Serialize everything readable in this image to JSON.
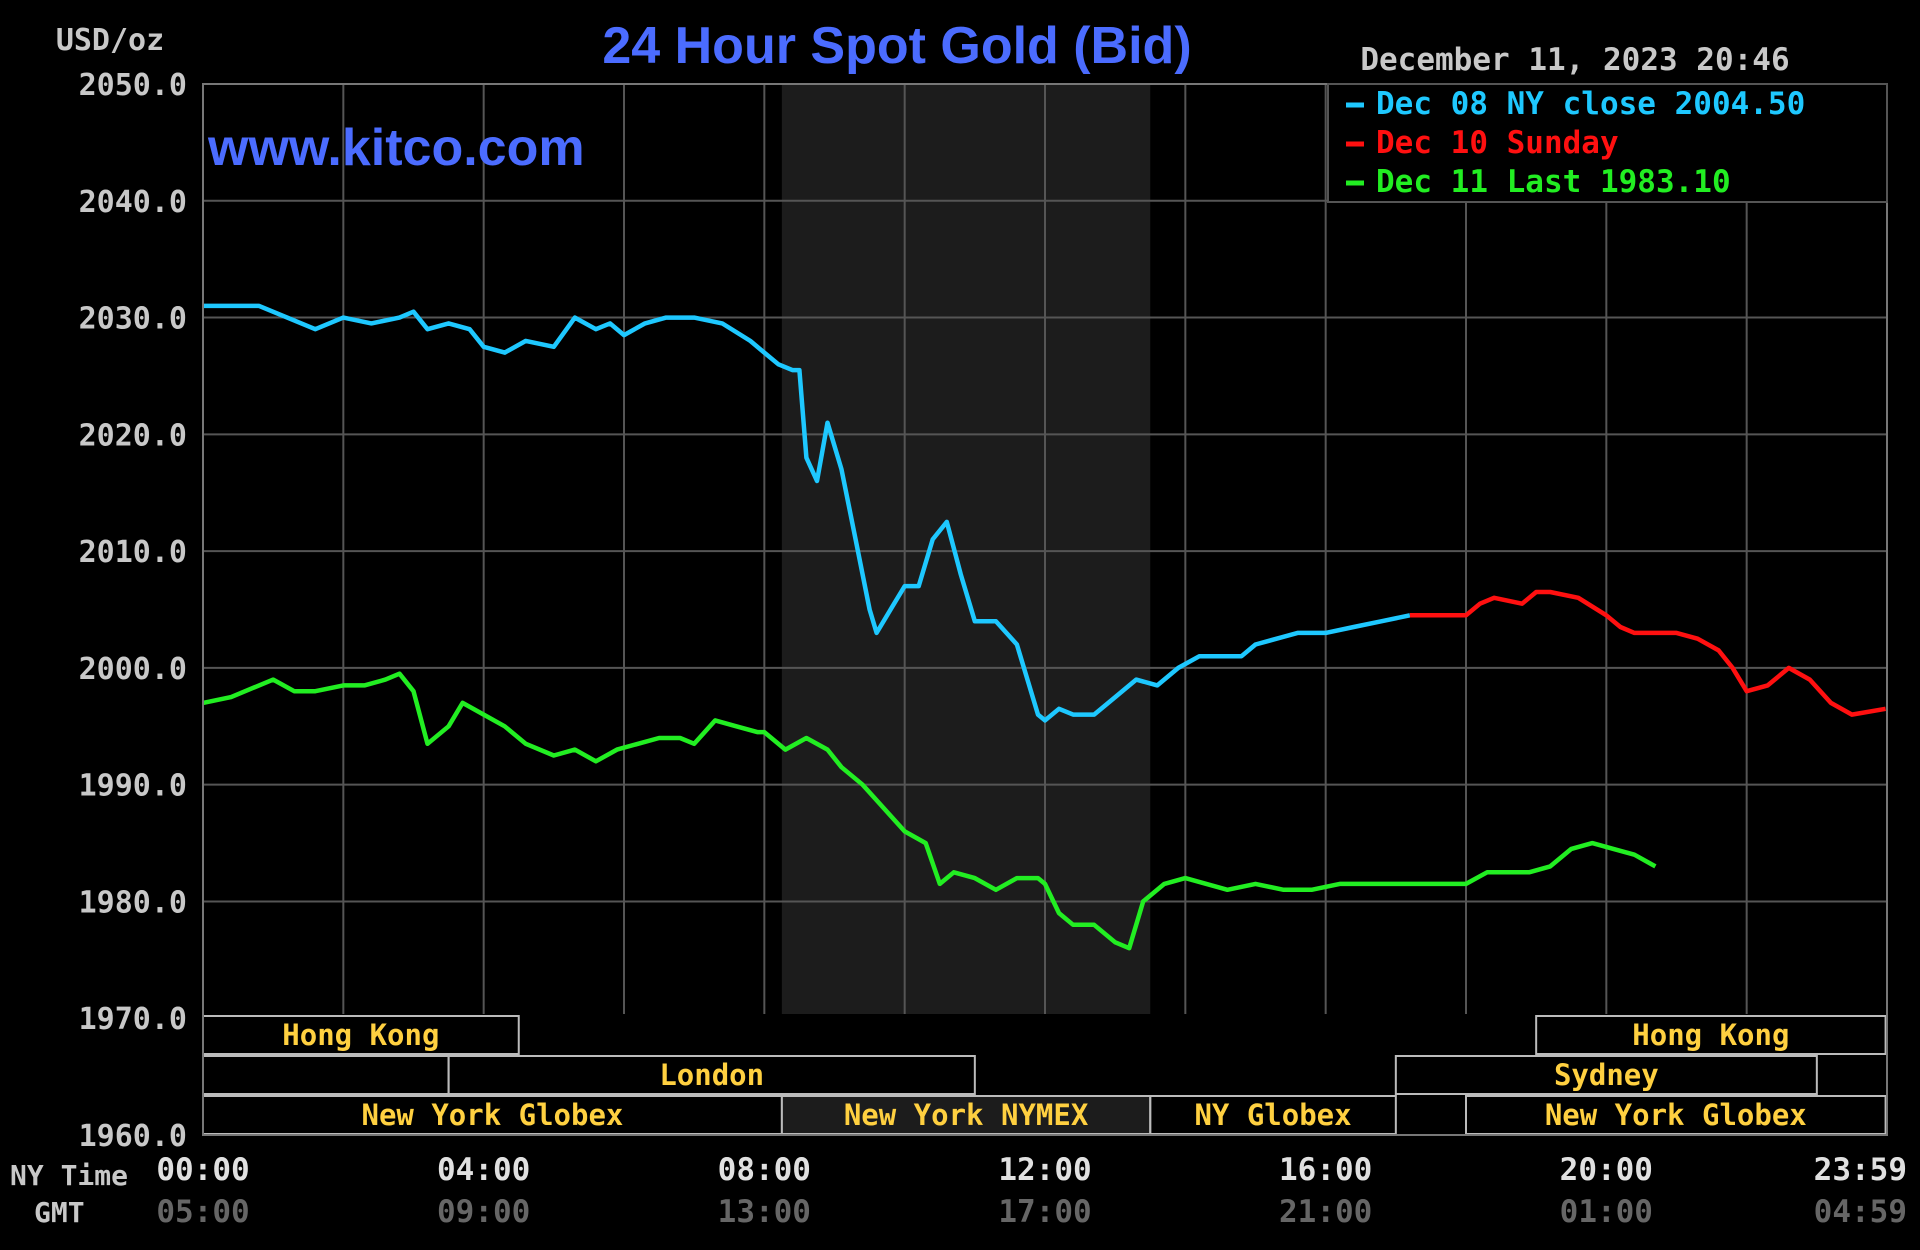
{
  "title": "24 Hour Spot Gold (Bid)",
  "unit_label": "USD/oz",
  "watermark": "www.kitco.com",
  "timestamp": "December 11, 2023 20:46",
  "colors": {
    "background": "#000000",
    "grid": "#555555",
    "axis_text": "#c8c8c8",
    "title": "#4b6cff",
    "dec08": "#1ec8ff",
    "dec10": "#ff1010",
    "dec11": "#22ee22",
    "session_label": "#ffd040",
    "shade": "#1c1c1c"
  },
  "chart_data": {
    "type": "line",
    "title": "24 Hour Spot Gold (Bid)",
    "ylabel": "USD/oz",
    "ylim": [
      1960,
      2050
    ],
    "y_ticks": [
      "2050.0",
      "2040.0",
      "2030.0",
      "2020.0",
      "2010.0",
      "2000.0",
      "1990.0",
      "1980.0",
      "1970.0",
      "1960.0"
    ],
    "xlim_hours": [
      0,
      24
    ],
    "x_ticks": [
      {
        "h": 0,
        "ny": "00:00",
        "gmt": "05:00"
      },
      {
        "h": 4,
        "ny": "04:00",
        "gmt": "09:00"
      },
      {
        "h": 8,
        "ny": "08:00",
        "gmt": "13:00"
      },
      {
        "h": 12,
        "ny": "12:00",
        "gmt": "17:00"
      },
      {
        "h": 16,
        "ny": "16:00",
        "gmt": "21:00"
      },
      {
        "h": 20,
        "ny": "20:00",
        "gmt": "01:00"
      },
      {
        "h": 23.98,
        "ny": "23:59",
        "gmt": "04:59"
      }
    ],
    "x_row_labels": {
      "ny": "NY Time",
      "gmt": "GMT"
    },
    "grid": true,
    "legend_position": "top-right",
    "legend": [
      {
        "key": "dec08",
        "label": "Dec 08 NY close 2004.50"
      },
      {
        "key": "dec10",
        "label": "Dec 10 Sunday"
      },
      {
        "key": "dec11",
        "label": "Dec 11 Last 1983.10"
      }
    ],
    "shaded_hours": [
      8.25,
      13.5
    ],
    "series": [
      {
        "key": "dec08",
        "x": [
          0,
          0.4,
          0.8,
          1.2,
          1.6,
          2.0,
          2.4,
          2.8,
          3.0,
          3.2,
          3.5,
          3.8,
          4.0,
          4.3,
          4.6,
          5.0,
          5.3,
          5.6,
          5.8,
          6.0,
          6.3,
          6.6,
          7.0,
          7.4,
          7.8,
          8.0,
          8.2,
          8.4,
          8.5,
          8.6,
          8.75,
          8.9,
          9.1,
          9.3,
          9.5,
          9.6,
          9.8,
          10.0,
          10.2,
          10.4,
          10.6,
          10.8,
          11.0,
          11.3,
          11.6,
          11.9,
          12.0,
          12.2,
          12.4,
          12.7,
          13.0,
          13.3,
          13.6,
          13.9,
          14.2,
          14.5,
          14.8,
          15.0,
          15.3,
          15.6,
          16.0,
          16.4,
          16.8,
          17.2
        ],
        "values": [
          2031,
          2031,
          2031,
          2030,
          2029,
          2030,
          2029.5,
          2030,
          2030.5,
          2029,
          2029.5,
          2029,
          2027.5,
          2027,
          2028,
          2027.5,
          2030,
          2029,
          2029.5,
          2028.5,
          2029.5,
          2030,
          2030,
          2029.5,
          2028,
          2027,
          2026,
          2025.5,
          2025.5,
          2018,
          2016,
          2021,
          2017,
          2011,
          2005,
          2003,
          2005,
          2007,
          2007,
          2011,
          2012.5,
          2008,
          2004,
          2004,
          2002,
          1996,
          1995.5,
          1996.5,
          1996,
          1996,
          1997.5,
          1999,
          1998.5,
          2000,
          2001,
          2001,
          2001,
          2002,
          2002.5,
          2003,
          2003,
          2003.5,
          2004,
          2004.5
        ]
      },
      {
        "key": "dec10",
        "x": [
          17.2,
          17.6,
          18.0,
          18.2,
          18.4,
          18.8,
          19.0,
          19.2,
          19.6,
          20.0,
          20.2,
          20.4,
          20.8,
          21.0,
          21.3,
          21.6,
          21.8,
          22.0,
          22.3,
          22.6,
          22.9,
          23.2,
          23.5,
          23.98
        ],
        "values": [
          2004.5,
          2004.5,
          2004.5,
          2005.5,
          2006,
          2005.5,
          2006.5,
          2006.5,
          2006,
          2004.5,
          2003.5,
          2003,
          2003,
          2003,
          2002.5,
          2001.5,
          2000,
          1998,
          1998.5,
          2000,
          1999,
          1997,
          1996,
          1996.5
        ]
      },
      {
        "key": "dec11",
        "x": [
          0,
          0.4,
          0.8,
          1.0,
          1.3,
          1.6,
          2.0,
          2.3,
          2.6,
          2.8,
          3.0,
          3.2,
          3.5,
          3.7,
          4.0,
          4.3,
          4.6,
          5.0,
          5.3,
          5.6,
          5.9,
          6.2,
          6.5,
          6.8,
          7.0,
          7.3,
          7.6,
          7.9,
          8.0,
          8.3,
          8.6,
          8.9,
          9.1,
          9.4,
          9.7,
          10.0,
          10.3,
          10.5,
          10.7,
          11.0,
          11.3,
          11.6,
          11.9,
          12.0,
          12.2,
          12.4,
          12.7,
          13.0,
          13.2,
          13.4,
          13.7,
          14.0,
          14.3,
          14.6,
          15.0,
          15.4,
          15.8,
          16.2,
          16.6,
          17.0,
          17.4,
          17.8,
          18.0,
          18.3,
          18.6,
          18.9,
          19.2,
          19.5,
          19.8,
          20.1,
          20.4,
          20.7
        ],
        "values": [
          1997,
          1997.5,
          1998.5,
          1999,
          1998,
          1998,
          1998.5,
          1998.5,
          1999,
          1999.5,
          1998,
          1993.5,
          1995,
          1997,
          1996,
          1995,
          1993.5,
          1992.5,
          1993,
          1992,
          1993,
          1993.5,
          1994,
          1994,
          1993.5,
          1995.5,
          1995,
          1994.5,
          1994.5,
          1993,
          1994,
          1993,
          1991.5,
          1990,
          1988,
          1986,
          1985,
          1981.5,
          1982.5,
          1982,
          1981,
          1982,
          1982,
          1981.5,
          1979,
          1978,
          1978,
          1976.5,
          1976,
          1980,
          1981.5,
          1982,
          1981.5,
          1981,
          1981.5,
          1981,
          1981,
          1981.5,
          1981.5,
          1981.5,
          1981.5,
          1981.5,
          1981.5,
          1982.5,
          1982.5,
          1982.5,
          1983,
          1984.5,
          1985,
          1984.5,
          1984,
          1983
        ]
      }
    ]
  },
  "sessions": {
    "rows": [
      [
        {
          "label": "Hong Kong",
          "start": 0,
          "end": 4.5
        },
        {
          "label": "Hong Kong",
          "start": 19.0,
          "end": 23.98
        }
      ],
      [
        {
          "label": "",
          "start": 0,
          "end": 3.5
        },
        {
          "label": "London",
          "start": 3.5,
          "end": 11.0
        },
        {
          "label": "Sydney",
          "start": 17.0,
          "end": 23.0
        }
      ],
      [
        {
          "label": "New York Globex",
          "start": 0,
          "end": 8.25
        },
        {
          "label": "New York NYMEX",
          "start": 8.25,
          "end": 13.5
        },
        {
          "label": "NY Globex",
          "start": 13.5,
          "end": 17.0
        },
        {
          "label": "New York Globex",
          "start": 18.0,
          "end": 23.98
        }
      ]
    ]
  }
}
